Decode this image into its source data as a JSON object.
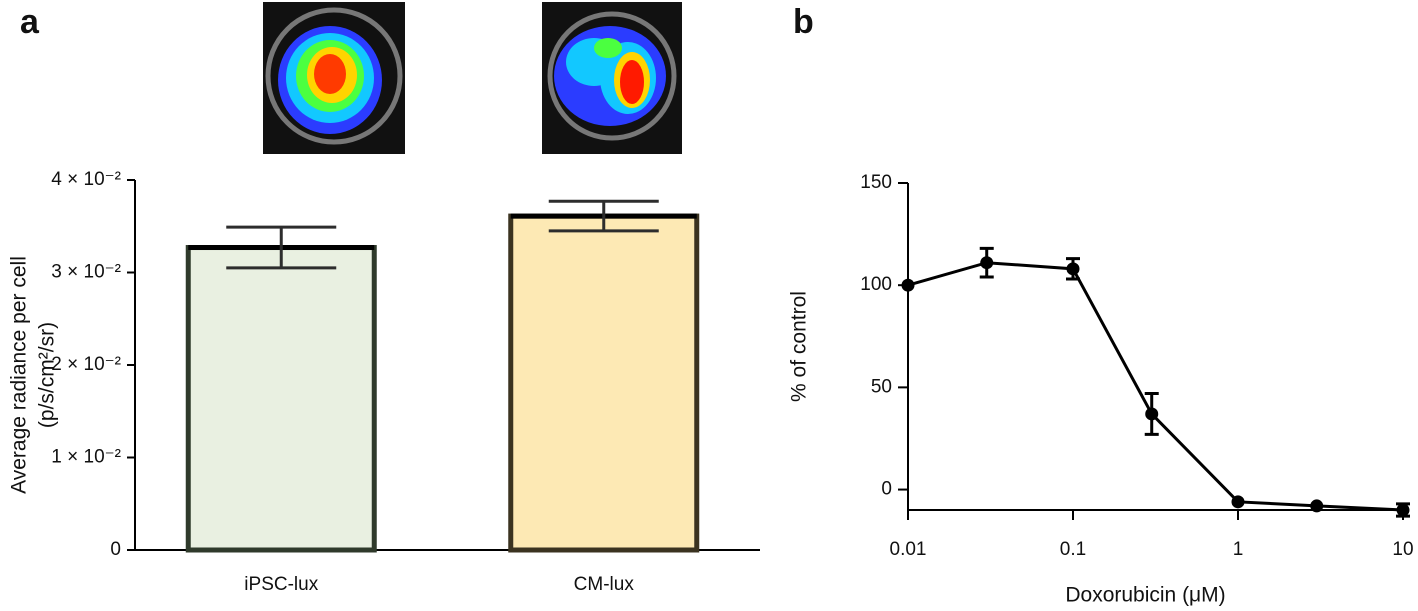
{
  "chart_data": [
    {
      "type": "bar",
      "panel": "a",
      "categories": [
        "iPSC-lux",
        "CM-lux"
      ],
      "values": [
        0.0327,
        0.0361
      ],
      "errors": [
        0.0022,
        0.0016
      ],
      "colors": [
        "#e9f0e1",
        "#fde9b4"
      ],
      "edge_colors": [
        "#2f3a2b",
        "#3b3320"
      ],
      "y_label": [
        "Average radiance per cell",
        "(p/s/cm²/sr)"
      ],
      "ylim": [
        0,
        0.04
      ],
      "yticks": [
        0,
        {
          "value": 0.01,
          "label": "1 × 10⁻²"
        },
        {
          "value": 0.02,
          "label": "2 × 10⁻²"
        },
        {
          "value": 0.03,
          "label": "3 × 10⁻²"
        },
        {
          "value": 0.04,
          "label": "4 × 10⁻²"
        }
      ]
    },
    {
      "type": "line",
      "panel": "b",
      "x": [
        0.01,
        0.03,
        0.1,
        0.3,
        1,
        3,
        10
      ],
      "values": [
        100,
        111,
        108,
        37,
        -6,
        -8,
        -10
      ],
      "errors": [
        0,
        7,
        5,
        10,
        0,
        0,
        3
      ],
      "color": "#000000",
      "x_scale": "log",
      "x_label": "Doxorubicin (μM)",
      "y_label": "% of control",
      "xlim": [
        0.01,
        10
      ],
      "xticks": [
        0.01,
        0.1,
        1,
        10
      ],
      "ylim": [
        -10,
        150
      ],
      "yticks": [
        0,
        50,
        100,
        150
      ]
    }
  ]
}
